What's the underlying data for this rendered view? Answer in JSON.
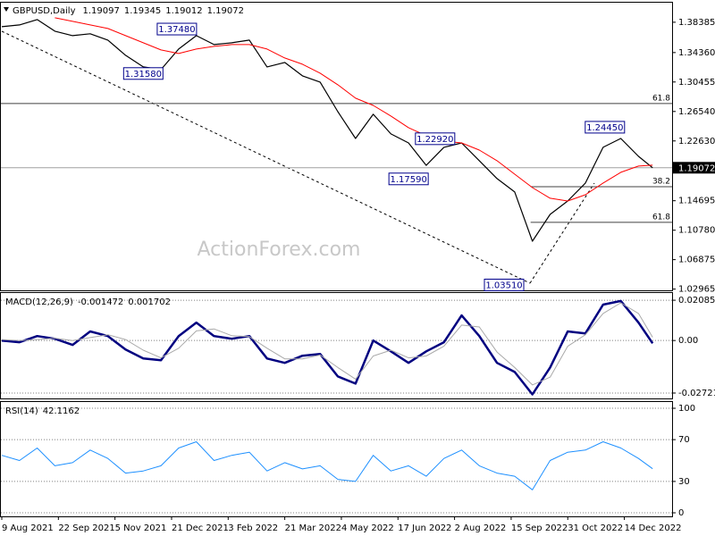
{
  "chart_data": [
    {
      "type": "line",
      "title": "GBPUSD,Daily",
      "ohlc": [
        1.19097,
        1.19345,
        1.19012,
        1.19072
      ],
      "x": [
        "2021-08-09",
        "2021-08-23",
        "2021-09-06",
        "2021-09-20",
        "2021-10-04",
        "2021-10-18",
        "2021-11-01",
        "2021-11-15",
        "2021-11-29",
        "2021-12-13",
        "2021-12-27",
        "2022-01-10",
        "2022-01-24",
        "2022-02-07",
        "2022-02-21",
        "2022-03-07",
        "2022-03-21",
        "2022-04-04",
        "2022-04-18",
        "2022-05-02",
        "2022-05-16",
        "2022-05-30",
        "2022-06-13",
        "2022-06-27",
        "2022-07-11",
        "2022-07-25",
        "2022-08-08",
        "2022-08-22",
        "2022-09-05",
        "2022-09-19",
        "2022-10-03",
        "2022-10-17",
        "2022-10-31",
        "2022-11-14",
        "2022-11-28",
        "2022-12-12",
        "2022-12-26",
        "2023-01-05"
      ],
      "xlim": [
        "2021-08-09",
        "2023-01-20"
      ],
      "xticks": [
        {
          "value": "2021-08-09",
          "label": "9 Aug 2021"
        },
        {
          "value": "2021-09-22",
          "label": "22 Sep 2021"
        },
        {
          "value": "2021-11-05",
          "label": "5 Nov 2021"
        },
        {
          "value": "2021-12-21",
          "label": "21 Dec 2021"
        },
        {
          "value": "2022-02-03",
          "label": "3 Feb 2022"
        },
        {
          "value": "2022-03-21",
          "label": "21 Mar 2022"
        },
        {
          "value": "2022-05-04",
          "label": "4 May 2022"
        },
        {
          "value": "2022-06-17",
          "label": "17 Jun 2022"
        },
        {
          "value": "2022-08-02",
          "label": "2 Aug 2022"
        },
        {
          "value": "2022-09-15",
          "label": "15 Sep 2022"
        },
        {
          "value": "2022-10-31",
          "label": "31 Oct 2022"
        },
        {
          "value": "2022-12-14",
          "label": "14 Dec 2022"
        }
      ],
      "ylim": [
        1.028,
        1.411
      ],
      "yticks": [
        1.38385,
        {
          "value": 1.3436,
          "label": "1.34360"
        },
        1.30455,
        {
          "value": 1.2654,
          "label": "1.26540"
        },
        {
          "value": 1.2263,
          "label": "1.22630"
        },
        1.14695,
        {
          "value": 1.1078,
          "label": "1.10780"
        },
        1.06875,
        1.02965
      ],
      "grid": false,
      "series": [
        {
          "color": "#000000",
          "values": [
            1.3779,
            1.3803,
            1.3874,
            1.372,
            1.3661,
            1.3685,
            1.3601,
            1.34,
            1.3245,
            1.321,
            1.3483,
            1.3661,
            1.3542,
            1.3566,
            1.3601,
            1.3245,
            1.3305,
            1.3127,
            1.3044,
            1.2652,
            1.2296,
            1.2617,
            1.2356,
            1.2237,
            1.1939,
            1.2178,
            1.2237,
            1.2,
            1.1763,
            1.1585,
            1.0932,
            1.1288,
            1.1466,
            1.1704,
            1.2178,
            1.2296,
            1.2059,
            1.19072
          ]
        },
        {
          "color": "#ff0000",
          "values": [
            null,
            null,
            null,
            1.3898,
            1.385,
            1.3803,
            1.3755,
            1.3661,
            1.3566,
            1.3471,
            1.3424,
            1.3483,
            1.3518,
            1.3542,
            1.3542,
            1.3483,
            1.3364,
            1.3281,
            1.3162,
            1.3008,
            1.283,
            1.2735,
            1.2593,
            1.2439,
            1.2332,
            1.2261,
            1.2237,
            1.2142,
            1.2,
            1.1822,
            1.1644,
            1.1502,
            1.1466,
            1.1549,
            1.1704,
            1.1846,
            1.1929,
            1.1941
          ]
        }
      ],
      "annotations": [
        {
          "text": "1.37480",
          "x": "2021-12-24",
          "y": 1.3748
        },
        {
          "text": "1.31580",
          "x": "2021-11-29",
          "y": 1.3158
        },
        {
          "text": "1.22920",
          "x": "2022-07-18",
          "y": 1.2292
        },
        {
          "text": "1.17590",
          "x": "2022-06-27",
          "y": 1.1759
        },
        {
          "text": "1.24450",
          "x": "2022-11-29",
          "y": 1.2445
        },
        {
          "text": "1.03510",
          "x": "2022-09-09",
          "y": 1.0351
        }
      ],
      "levels": [
        {
          "label": "61.8",
          "value": 1.2759
        },
        {
          "label": "38.2",
          "value": 1.1656,
          "start": "2022-09-30"
        },
        {
          "label": "61.8",
          "value": 1.1182,
          "start": "2022-09-30"
        }
      ],
      "watermark": "ActionForex.com"
    },
    {
      "type": "line",
      "title": "MACD(12,26,9)",
      "ylim": [
        -0.03,
        0.0246
      ],
      "yticks": [
        0.020858,
        {
          "value": 0,
          "label": "0.00"
        },
        -0.027213
      ],
      "grid": true,
      "series": [
        {
          "color": "#000080",
          "values": [
            0,
            -0.0009,
            0.0023,
            0.0009,
            -0.0023,
            0.0047,
            0.0023,
            -0.0047,
            -0.0093,
            -0.0102,
            0.0023,
            0.0093,
            0.0023,
            0.0009,
            0.0023,
            -0.0093,
            -0.0116,
            -0.0079,
            -0.007,
            -0.0186,
            -0.0223,
            0,
            -0.0056,
            -0.0116,
            -0.0056,
            -0.0009,
            0.013,
            0.0023,
            -0.0116,
            -0.0163,
            -0.0279,
            -0.014,
            0.0047,
            0.0037,
            0.0186,
            0.0205,
            0.0093,
            -0.001472
          ]
        },
        {
          "color": "#a9a9a9",
          "values": [
            0.0005,
            0,
            0.0005,
            0.0012,
            0,
            0.0015,
            0.003,
            0.0005,
            -0.005,
            -0.009,
            -0.004,
            0.005,
            0.006,
            0.0025,
            0.002,
            -0.004,
            -0.0095,
            -0.0095,
            -0.0075,
            -0.014,
            -0.02,
            -0.008,
            -0.005,
            -0.009,
            -0.008,
            -0.003,
            0.008,
            0.007,
            -0.006,
            -0.014,
            -0.023,
            -0.019,
            -0.003,
            0.003,
            0.014,
            0.0195,
            0.014,
            0.001702
          ]
        }
      ]
    },
    {
      "type": "line",
      "title": "RSI(14)",
      "ylim": [
        -3.4,
        106
      ],
      "yticks": [
        100,
        70,
        30,
        0
      ],
      "grid": true,
      "series": [
        {
          "color": "#1e90ff",
          "values": [
            55,
            50,
            62,
            45,
            48,
            60,
            52,
            38,
            40,
            45,
            62,
            68,
            50,
            55,
            58,
            40,
            48,
            42,
            45,
            32,
            30,
            55,
            40,
            45,
            35,
            52,
            60,
            45,
            38,
            35,
            22,
            50,
            58,
            60,
            68,
            62,
            52,
            42.1162
          ]
        }
      ]
    }
  ]
}
